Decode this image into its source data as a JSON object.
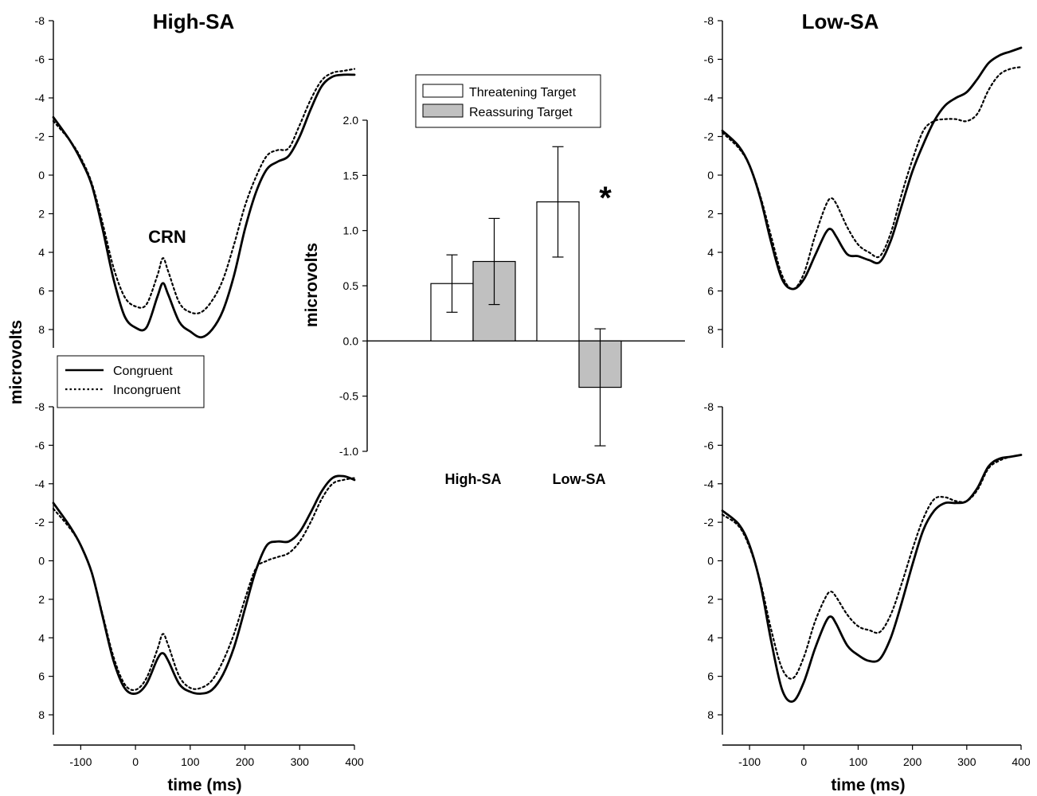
{
  "chart_data": [
    {
      "type": "line",
      "panel": "erp-top-left",
      "title": "High-SA",
      "annotation": "CRN",
      "ylabel": "microvolts",
      "xlabel": "",
      "ylim": [
        8,
        -8
      ],
      "yticks": [
        "-8",
        "-6",
        "-4",
        "-2",
        "0",
        "2",
        "4",
        "6",
        "8"
      ],
      "series": [
        {
          "name": "Congruent",
          "style": "solid",
          "x": [
            -150,
            -120,
            -100,
            -80,
            -60,
            -40,
            -20,
            0,
            20,
            40,
            50,
            60,
            80,
            100,
            120,
            140,
            160,
            180,
            200,
            220,
            240,
            260,
            280,
            300,
            320,
            340,
            360,
            380,
            400
          ],
          "y": [
            -3.0,
            -1.8,
            -0.8,
            0.5,
            2.8,
            5.4,
            7.3,
            7.9,
            7.9,
            6.3,
            5.6,
            6.2,
            7.6,
            8.1,
            8.4,
            8.0,
            7.0,
            5.2,
            2.8,
            0.9,
            -0.3,
            -0.7,
            -1.0,
            -2.0,
            -3.4,
            -4.6,
            -5.1,
            -5.2,
            -5.2
          ]
        },
        {
          "name": "Incongruent",
          "style": "dotted",
          "x": [
            -150,
            -120,
            -100,
            -80,
            -60,
            -40,
            -20,
            0,
            20,
            40,
            50,
            60,
            80,
            100,
            120,
            140,
            160,
            180,
            200,
            220,
            240,
            260,
            280,
            300,
            320,
            340,
            360,
            380,
            400
          ],
          "y": [
            -2.8,
            -1.8,
            -0.9,
            0.4,
            2.5,
            4.8,
            6.3,
            6.8,
            6.7,
            5.2,
            4.3,
            5.0,
            6.6,
            7.1,
            7.1,
            6.5,
            5.4,
            3.6,
            1.6,
            0.1,
            -1.0,
            -1.3,
            -1.4,
            -2.6,
            -3.9,
            -4.9,
            -5.3,
            -5.4,
            -5.5
          ]
        }
      ]
    },
    {
      "type": "line",
      "panel": "erp-bottom-left",
      "xlabel": "time (ms)",
      "ylim": [
        8,
        -8
      ],
      "xlim": [
        -150,
        400
      ],
      "yticks": [
        "-8",
        "-6",
        "-4",
        "-2",
        "0",
        "2",
        "4",
        "6",
        "8"
      ],
      "xticks": [
        "-100",
        "0",
        "100",
        "200",
        "300",
        "400"
      ],
      "series": [
        {
          "name": "Congruent",
          "style": "solid",
          "x": [
            -150,
            -120,
            -100,
            -80,
            -60,
            -40,
            -20,
            0,
            20,
            40,
            50,
            60,
            80,
            100,
            120,
            140,
            160,
            180,
            200,
            220,
            240,
            260,
            280,
            300,
            320,
            340,
            360,
            380,
            400
          ],
          "y": [
            -3.0,
            -1.8,
            -0.8,
            0.6,
            2.9,
            5.2,
            6.6,
            6.9,
            6.4,
            5.1,
            4.8,
            5.2,
            6.4,
            6.8,
            6.9,
            6.7,
            5.9,
            4.5,
            2.5,
            0.5,
            -0.8,
            -1.0,
            -1.0,
            -1.5,
            -2.5,
            -3.6,
            -4.3,
            -4.4,
            -4.2
          ]
        },
        {
          "name": "Incongruent",
          "style": "dotted",
          "x": [
            -150,
            -120,
            -100,
            -80,
            -60,
            -40,
            -20,
            0,
            20,
            40,
            50,
            60,
            80,
            100,
            120,
            140,
            160,
            180,
            200,
            220,
            240,
            260,
            280,
            300,
            320,
            340,
            360,
            380,
            400
          ],
          "y": [
            -2.7,
            -1.7,
            -0.8,
            0.6,
            2.8,
            5.0,
            6.4,
            6.7,
            6.1,
            4.6,
            3.8,
            4.4,
            6.0,
            6.6,
            6.6,
            6.2,
            5.2,
            3.8,
            2.0,
            0.4,
            0.0,
            -0.2,
            -0.4,
            -1.0,
            -2.0,
            -3.2,
            -4.0,
            -4.2,
            -4.3
          ]
        }
      ]
    },
    {
      "type": "bar",
      "panel": "bar-center",
      "categories": [
        "High-SA",
        "Low-SA"
      ],
      "ylabel": "microvolts",
      "ylim": [
        -1.0,
        2.0
      ],
      "yticks": [
        "2.0",
        "1.5",
        "1.0",
        "0.5",
        "0.0",
        "-0.5",
        "-1.0"
      ],
      "legend_position": "top-left",
      "significance_marker": "*",
      "series": [
        {
          "name": "Threatening Target",
          "color": "#ffffff",
          "values": [
            0.52,
            1.26
          ],
          "error": [
            0.26,
            0.5
          ]
        },
        {
          "name": "Reassuring Target",
          "color": "#c0c0c0",
          "values": [
            0.72,
            -0.42
          ],
          "error": [
            0.39,
            0.53
          ]
        }
      ]
    },
    {
      "type": "line",
      "panel": "erp-top-right",
      "title": "Low-SA",
      "ylim": [
        8,
        -8
      ],
      "yticks": [
        "-8",
        "-6",
        "-4",
        "-2",
        "0",
        "2",
        "4",
        "6",
        "8"
      ],
      "series": [
        {
          "name": "Congruent",
          "style": "solid",
          "x": [
            -150,
            -120,
            -100,
            -80,
            -60,
            -40,
            -20,
            0,
            20,
            40,
            50,
            60,
            80,
            100,
            120,
            140,
            160,
            180,
            200,
            220,
            240,
            260,
            280,
            300,
            320,
            340,
            360,
            380,
            400
          ],
          "y": [
            -2.3,
            -1.5,
            -0.5,
            1.2,
            3.5,
            5.4,
            5.9,
            5.4,
            4.2,
            3.0,
            2.8,
            3.2,
            4.1,
            4.2,
            4.4,
            4.5,
            3.4,
            1.6,
            -0.2,
            -1.6,
            -2.8,
            -3.6,
            -4.0,
            -4.3,
            -5.0,
            -5.8,
            -6.2,
            -6.4,
            -6.6
          ]
        },
        {
          "name": "Incongruent",
          "style": "dotted",
          "x": [
            -150,
            -120,
            -100,
            -80,
            -60,
            -40,
            -20,
            0,
            20,
            40,
            50,
            60,
            80,
            100,
            120,
            140,
            160,
            180,
            200,
            220,
            240,
            260,
            280,
            300,
            320,
            340,
            360,
            380,
            400
          ],
          "y": [
            -2.2,
            -1.4,
            -0.5,
            1.1,
            3.2,
            5.2,
            5.9,
            5.1,
            3.2,
            1.6,
            1.2,
            1.5,
            2.7,
            3.6,
            4.0,
            4.2,
            3.0,
            1.0,
            -0.8,
            -2.3,
            -2.8,
            -2.9,
            -2.9,
            -2.8,
            -3.2,
            -4.4,
            -5.2,
            -5.5,
            -5.6
          ]
        }
      ]
    },
    {
      "type": "line",
      "panel": "erp-bottom-right",
      "xlabel": "time (ms)",
      "ylim": [
        8,
        -8
      ],
      "xlim": [
        -150,
        400
      ],
      "yticks": [
        "-8",
        "-6",
        "-4",
        "-2",
        "0",
        "2",
        "4",
        "6",
        "8"
      ],
      "xticks": [
        "-100",
        "0",
        "100",
        "200",
        "300",
        "400"
      ],
      "series": [
        {
          "name": "Congruent",
          "style": "solid",
          "x": [
            -150,
            -120,
            -100,
            -80,
            -60,
            -40,
            -20,
            0,
            20,
            40,
            50,
            60,
            80,
            100,
            120,
            140,
            160,
            180,
            200,
            220,
            240,
            260,
            280,
            300,
            320,
            340,
            360,
            380,
            400
          ],
          "y": [
            -2.6,
            -1.9,
            -0.8,
            1.2,
            4.2,
            6.7,
            7.3,
            6.3,
            4.6,
            3.2,
            2.9,
            3.3,
            4.4,
            4.9,
            5.2,
            5.1,
            4.0,
            2.2,
            0.2,
            -1.6,
            -2.6,
            -3.0,
            -3.0,
            -3.1,
            -3.8,
            -4.9,
            -5.3,
            -5.4,
            -5.5
          ]
        },
        {
          "name": "Incongruent",
          "style": "dotted",
          "x": [
            -150,
            -120,
            -100,
            -80,
            -60,
            -40,
            -20,
            0,
            20,
            40,
            50,
            60,
            80,
            100,
            120,
            140,
            160,
            180,
            200,
            220,
            240,
            260,
            280,
            300,
            320,
            340,
            360,
            380,
            400
          ],
          "y": [
            -2.4,
            -1.8,
            -0.7,
            1.1,
            3.6,
            5.6,
            6.1,
            5.0,
            3.2,
            1.9,
            1.6,
            1.9,
            2.8,
            3.4,
            3.6,
            3.7,
            2.8,
            1.2,
            -0.6,
            -2.2,
            -3.2,
            -3.3,
            -3.1,
            -3.1,
            -3.7,
            -4.8,
            -5.2,
            -5.4,
            -5.5
          ]
        }
      ]
    }
  ],
  "legend_erp": {
    "items": [
      "Congruent",
      "Incongruent"
    ]
  },
  "axis_labels": {
    "time": "time (ms)",
    "microvolts": "microvolts"
  }
}
